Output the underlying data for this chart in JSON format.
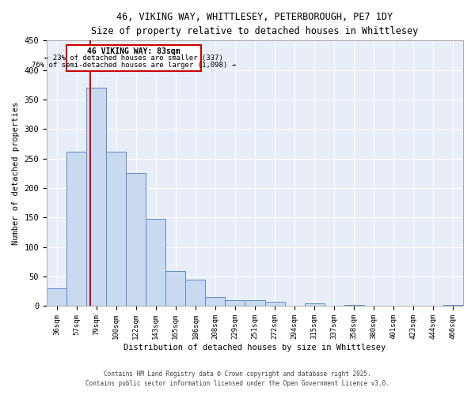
{
  "title_line1": "46, VIKING WAY, WHITTLESEY, PETERBOROUGH, PE7 1DY",
  "title_line2": "Size of property relative to detached houses in Whittlesey",
  "xlabel": "Distribution of detached houses by size in Whittlesey",
  "ylabel": "Number of detached properties",
  "categories": [
    "36sqm",
    "57sqm",
    "79sqm",
    "100sqm",
    "122sqm",
    "143sqm",
    "165sqm",
    "186sqm",
    "208sqm",
    "229sqm",
    "251sqm",
    "272sqm",
    "294sqm",
    "315sqm",
    "337sqm",
    "358sqm",
    "380sqm",
    "401sqm",
    "423sqm",
    "444sqm",
    "466sqm"
  ],
  "values": [
    30,
    262,
    370,
    262,
    225,
    148,
    60,
    45,
    16,
    10,
    10,
    7,
    0,
    5,
    0,
    2,
    0,
    0,
    0,
    0,
    2
  ],
  "bar_color": "#c9d9f0",
  "bar_edge_color": "#5b8cc8",
  "marker_label": "46 VIKING WAY: 83sqm",
  "marker_pct_left": "← 23% of detached houses are smaller (337)",
  "marker_pct_right": "76% of semi-detached houses are larger (1,098) →",
  "marker_color": "#cc0000",
  "annotation_box_color": "#cc0000",
  "ylim": [
    0,
    450
  ],
  "yticks": [
    0,
    50,
    100,
    150,
    200,
    250,
    300,
    350,
    400,
    450
  ],
  "bg_color": "#e8eef8",
  "footer_line1": "Contains HM Land Registry data © Crown copyright and database right 2025.",
  "footer_line2": "Contains public sector information licensed under the Open Government Licence v3.0."
}
